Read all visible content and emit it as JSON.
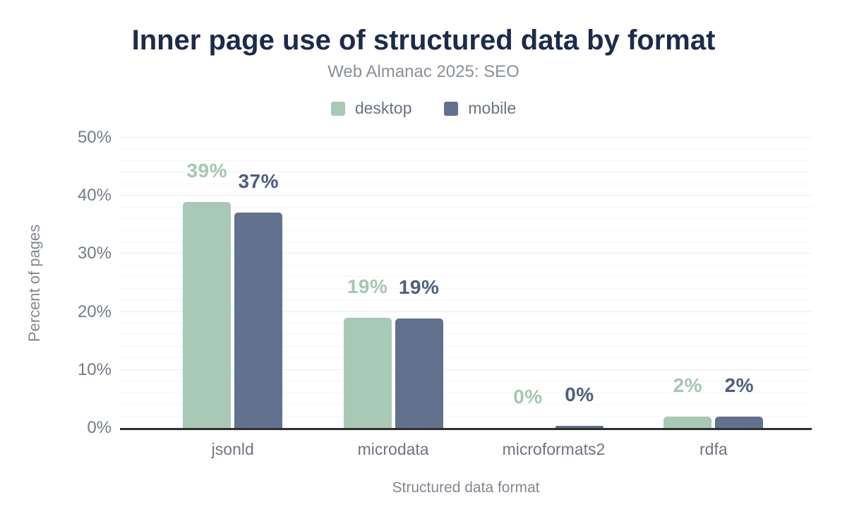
{
  "header": {
    "title": "Inner page use of structured data by format",
    "subtitle": "Web Almanac 2025: SEO"
  },
  "legend": [
    {
      "label": "desktop",
      "color": "#a8c9b6"
    },
    {
      "label": "mobile",
      "color": "#61718e"
    }
  ],
  "colors": {
    "title": "#1c2b4a",
    "subtitle_text": "#8b9197",
    "axis_text": "#747c86",
    "axis_title_text": "#82888f",
    "baseline": "#2f2f2f",
    "grid_major": "#ececec",
    "grid_minor": "#f7f4f4",
    "desktop": "#a8c9b6",
    "mobile": "#61718e",
    "desktop_label": "#a4c7b3",
    "mobile_label": "#4d5f7d"
  },
  "chart_data": {
    "type": "bar",
    "title": "Inner page use of structured data by format",
    "subtitle": "Web Almanac 2025: SEO",
    "categories": [
      "jsonld",
      "microdata",
      "microformats2",
      "rdfa"
    ],
    "series": [
      {
        "name": "desktop",
        "color": "#a8c9b6",
        "label_color": "#a4c7b3",
        "values": [
          39,
          19,
          0,
          2
        ],
        "labels": [
          "39%",
          "19%",
          "0%",
          "2%"
        ],
        "bar_heights_pct": [
          38.9,
          19.0,
          0.0,
          1.9
        ]
      },
      {
        "name": "mobile",
        "color": "#61718e",
        "label_color": "#4d5f7d",
        "values": [
          37,
          19,
          0,
          2
        ],
        "labels": [
          "37%",
          "19%",
          "0%",
          "2%"
        ],
        "bar_heights_pct": [
          37.1,
          18.8,
          0.35,
          1.9
        ]
      }
    ],
    "xlabel": "Structured data format",
    "ylabel": "Percent of pages",
    "ylim": [
      0,
      50
    ],
    "yticks": [
      "0%",
      "10%",
      "20%",
      "30%",
      "40%",
      "50%"
    ],
    "ytick_values": [
      0,
      10,
      20,
      30,
      40,
      50
    ],
    "grid": {
      "major_step": 10,
      "minor_step": 2,
      "minor_on": true
    },
    "legend_position": "top",
    "value_labels": "above-bars"
  }
}
